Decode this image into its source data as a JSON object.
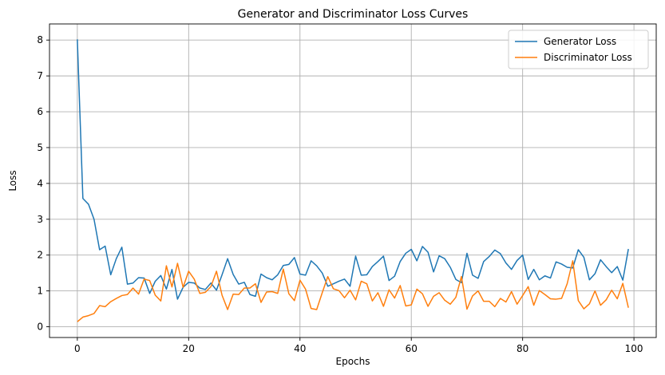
{
  "chart_data": {
    "type": "line",
    "title": "Generator and Discriminator Loss Curves",
    "xlabel": "Epochs",
    "ylabel": "Loss",
    "xlim": [
      -5,
      104
    ],
    "ylim": [
      -0.3,
      8.45
    ],
    "xticks": [
      0,
      20,
      40,
      60,
      80,
      100
    ],
    "yticks": [
      0,
      1,
      2,
      3,
      4,
      5,
      6,
      7,
      8
    ],
    "grid": true,
    "legend_position": "top-right",
    "x": [
      0,
      1,
      2,
      3,
      4,
      5,
      6,
      7,
      8,
      9,
      10,
      11,
      12,
      13,
      14,
      15,
      16,
      17,
      18,
      19,
      20,
      21,
      22,
      23,
      24,
      25,
      26,
      27,
      28,
      29,
      30,
      31,
      32,
      33,
      34,
      35,
      36,
      37,
      38,
      39,
      40,
      41,
      42,
      43,
      44,
      45,
      46,
      47,
      48,
      49,
      50,
      51,
      52,
      53,
      54,
      55,
      56,
      57,
      58,
      59,
      60,
      61,
      62,
      63,
      64,
      65,
      66,
      67,
      68,
      69,
      70,
      71,
      72,
      73,
      74,
      75,
      76,
      77,
      78,
      79,
      80,
      81,
      82,
      83,
      84,
      85,
      86,
      87,
      88,
      89,
      90,
      91,
      92,
      93,
      94,
      95,
      96,
      97,
      98,
      99
    ],
    "series": [
      {
        "name": "Generator Loss",
        "color": "#1f77b4",
        "values": [
          8.02,
          3.58,
          3.42,
          3.0,
          2.15,
          2.25,
          1.45,
          1.9,
          2.22,
          1.19,
          1.22,
          1.37,
          1.36,
          0.93,
          1.27,
          1.43,
          1.05,
          1.6,
          0.77,
          1.1,
          1.24,
          1.22,
          1.08,
          1.04,
          1.22,
          1.02,
          1.45,
          1.9,
          1.46,
          1.19,
          1.24,
          0.9,
          0.85,
          1.47,
          1.37,
          1.31,
          1.45,
          1.71,
          1.74,
          1.93,
          1.47,
          1.44,
          1.84,
          1.7,
          1.5,
          1.13,
          1.2,
          1.27,
          1.33,
          1.13,
          1.97,
          1.44,
          1.45,
          1.68,
          1.82,
          1.97,
          1.29,
          1.41,
          1.82,
          2.05,
          2.16,
          1.84,
          2.24,
          2.08,
          1.53,
          1.98,
          1.9,
          1.66,
          1.32,
          1.23,
          2.05,
          1.44,
          1.35,
          1.82,
          1.96,
          2.14,
          2.04,
          1.78,
          1.6,
          1.85,
          2.0,
          1.32,
          1.6,
          1.31,
          1.42,
          1.36,
          1.81,
          1.75,
          1.66,
          1.64,
          2.15,
          1.94,
          1.31,
          1.48,
          1.87,
          1.68,
          1.51,
          1.68,
          1.3,
          2.17
        ]
      },
      {
        "name": "Discriminator Loss",
        "color": "#ff7f0e",
        "values": [
          0.14,
          0.27,
          0.31,
          0.37,
          0.59,
          0.56,
          0.7,
          0.79,
          0.87,
          0.9,
          1.08,
          0.91,
          1.33,
          1.29,
          0.88,
          0.72,
          1.7,
          1.11,
          1.77,
          1.1,
          1.55,
          1.33,
          0.93,
          0.96,
          1.12,
          1.55,
          0.88,
          0.48,
          0.91,
          0.9,
          1.08,
          1.08,
          1.2,
          0.68,
          0.97,
          0.98,
          0.93,
          1.61,
          0.92,
          0.73,
          1.3,
          1.05,
          0.51,
          0.48,
          0.95,
          1.4,
          1.06,
          1.01,
          0.81,
          1.02,
          0.75,
          1.27,
          1.2,
          0.72,
          0.95,
          0.57,
          1.03,
          0.8,
          1.15,
          0.58,
          0.61,
          1.05,
          0.92,
          0.57,
          0.85,
          0.95,
          0.74,
          0.63,
          0.82,
          1.4,
          0.49,
          0.86,
          1.0,
          0.71,
          0.71,
          0.56,
          0.79,
          0.69,
          0.98,
          0.63,
          0.87,
          1.12,
          0.6,
          1.01,
          0.9,
          0.78,
          0.77,
          0.79,
          1.2,
          1.84,
          0.73,
          0.5,
          0.64,
          1.0,
          0.6,
          0.75,
          1.02,
          0.78,
          1.21,
          0.53
        ]
      }
    ]
  }
}
